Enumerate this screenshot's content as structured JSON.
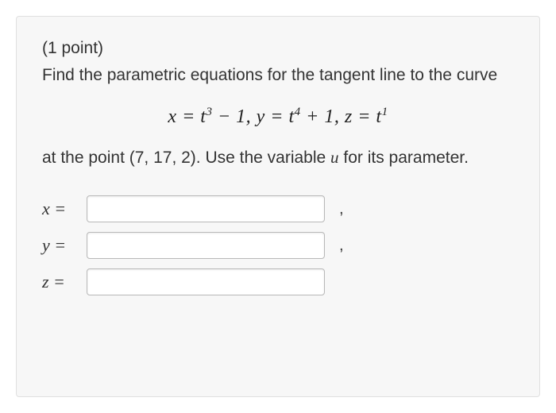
{
  "points": "(1 point)",
  "question_line1": "Find the parametric equations for the tangent line to the curve",
  "equation": {
    "x_part": "x = t",
    "x_exp": "3",
    "x_tail": " − 1, ",
    "y_part": "y = t",
    "y_exp": "4",
    "y_tail": " + 1, ",
    "z_part": "z = t",
    "z_exp": "1"
  },
  "question_line2_a": "at the point (7, 17, 2). Use the variable ",
  "question_var": "u",
  "question_line2_b": " for its parameter.",
  "answers": {
    "x_label": "x =",
    "y_label": "y =",
    "z_label": "z ="
  },
  "comma": ",",
  "styling": {
    "background_color": "#f7f7f7",
    "border_color": "#e0e0e0",
    "text_color": "#333333",
    "input_border": "#b8b8b8",
    "font_size_body": 21,
    "font_size_equation": 24,
    "input_width": 300,
    "input_height": 34,
    "container_width": 660,
    "container_height": 480
  }
}
